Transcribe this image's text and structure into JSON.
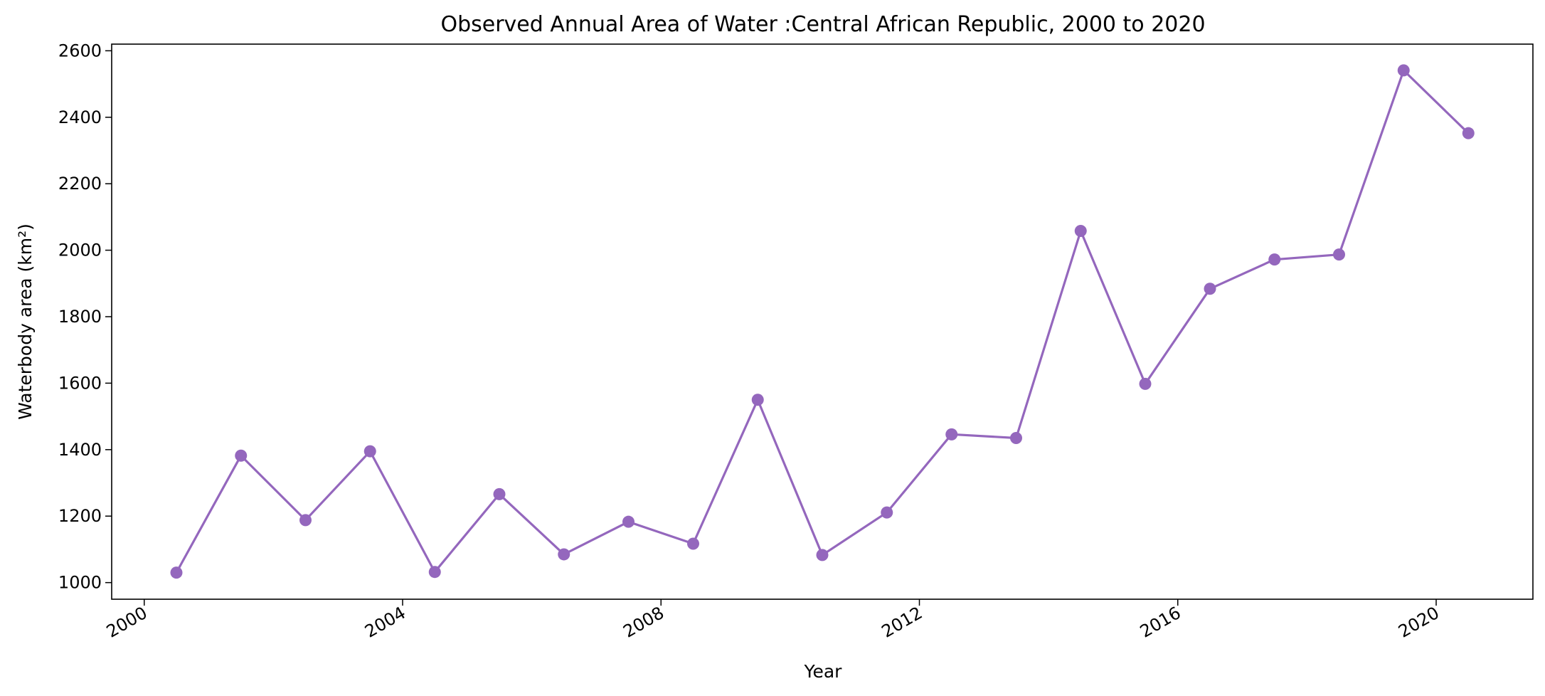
{
  "chart_data": {
    "type": "line",
    "title": "Observed Annual Area of Water :Central African Republic, 2000 to 2020",
    "xlabel": "Year",
    "ylabel": "Waterbody area (km²)",
    "x": [
      "2000-07-01",
      "2001-07-01",
      "2002-07-01",
      "2003-07-01",
      "2004-07-01",
      "2005-07-01",
      "2006-07-01",
      "2007-07-01",
      "2008-07-01",
      "2009-07-01",
      "2010-07-01",
      "2011-07-01",
      "2012-07-01",
      "2013-07-01",
      "2014-07-01",
      "2015-07-01",
      "2016-07-01",
      "2017-07-01",
      "2018-07-01",
      "2019-07-01",
      "2020-07-01"
    ],
    "series": [
      {
        "values": [
          1030,
          1382,
          1188,
          1395,
          1032,
          1266,
          1085,
          1183,
          1117,
          1550,
          1083,
          1211,
          1446,
          1435,
          2058,
          1598,
          1884,
          1972,
          1987,
          2541,
          2352
        ],
        "color": "#9467bd",
        "marker": "circle"
      }
    ],
    "xlim": [
      "1999-07-01",
      "2021-07-01"
    ],
    "ylim": [
      950,
      2620
    ],
    "x_ticks": [
      "2000",
      "2004",
      "2008",
      "2012",
      "2016",
      "2020"
    ],
    "y_ticks": [
      1000,
      1200,
      1400,
      1600,
      1800,
      2000,
      2200,
      2400,
      2600
    ],
    "grid": false
  }
}
